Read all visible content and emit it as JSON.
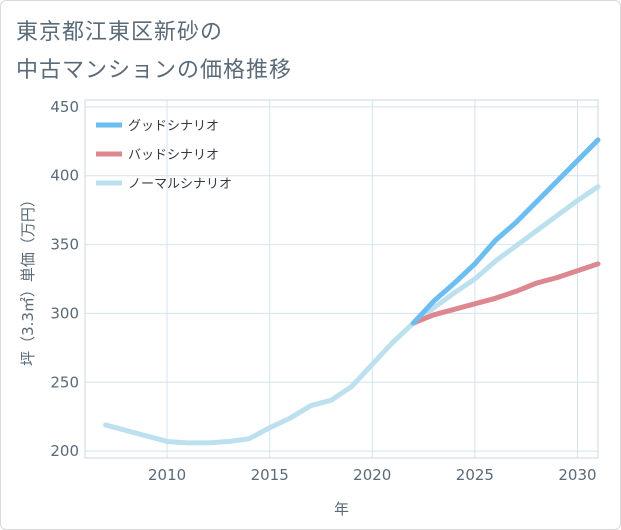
{
  "title_line1": "東京都江東区新砂の",
  "title_line2": "中古マンションの価格推移",
  "chart_data": {
    "type": "line",
    "xlabel": "年",
    "ylabel": "坪（3.3㎡）単価（万円）",
    "xlim": [
      2006,
      2031
    ],
    "ylim": [
      195,
      455
    ],
    "x_ticks": [
      2010,
      2015,
      2020,
      2025,
      2030
    ],
    "y_ticks": [
      200,
      250,
      300,
      350,
      400,
      450
    ],
    "grid": true,
    "legend_position": "top-left",
    "series": [
      {
        "name": "グッドシナリオ",
        "color": "#6cbdf0",
        "x": [
          2022,
          2023,
          2024,
          2025,
          2026,
          2027,
          2028,
          2029,
          2030,
          2031
        ],
        "values": [
          293,
          309,
          322,
          336,
          353,
          366,
          381,
          396,
          411,
          426
        ]
      },
      {
        "name": "バッドシナリオ",
        "color": "#dd8790",
        "x": [
          2022,
          2023,
          2024,
          2025,
          2026,
          2027,
          2028,
          2029,
          2030,
          2031
        ],
        "values": [
          293,
          299,
          303,
          307,
          311,
          316,
          322,
          326,
          331,
          336
        ]
      },
      {
        "name": "ノーマルシナリオ",
        "color": "#bde0ef",
        "x": [
          2007,
          2008,
          2009,
          2010,
          2011,
          2012,
          2013,
          2014,
          2015,
          2016,
          2017,
          2018,
          2019,
          2020,
          2021,
          2022,
          2023,
          2024,
          2025,
          2026,
          2027,
          2028,
          2029,
          2030,
          2031
        ],
        "values": [
          219,
          215,
          211,
          207,
          206,
          206,
          207,
          209,
          217,
          224,
          233,
          237,
          247,
          263,
          279,
          293,
          304,
          315,
          325,
          338,
          349,
          360,
          371,
          382,
          392
        ]
      }
    ]
  }
}
